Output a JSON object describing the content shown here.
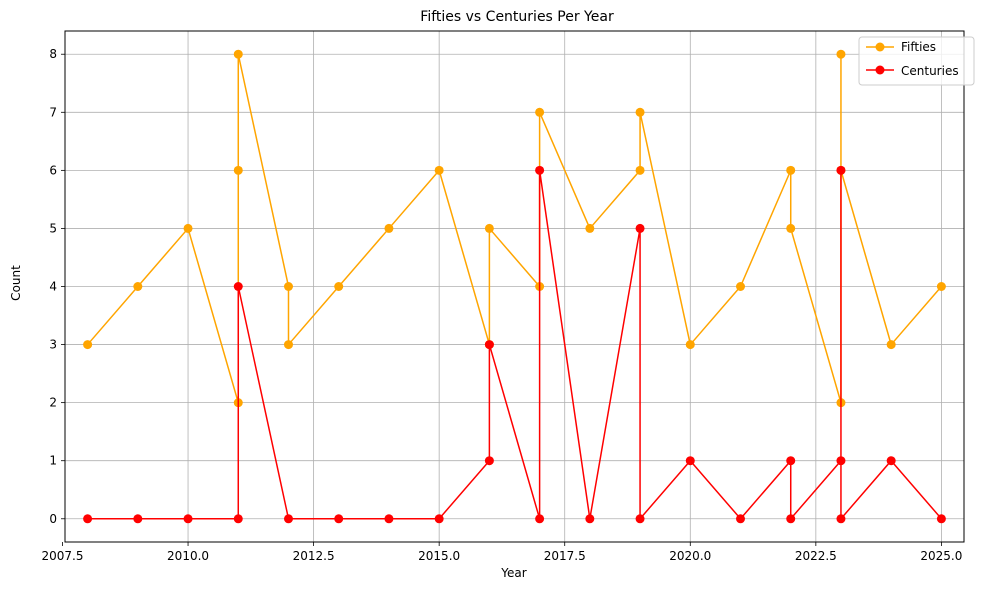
{
  "chart_data": {
    "type": "line",
    "title": "Fifties vs Centuries Per Year",
    "xlabel": "Year",
    "ylabel": "Count",
    "xlim": [
      2007.55,
      2025.45
    ],
    "ylim": [
      -0.4,
      8.4
    ],
    "xticks": [
      2007.5,
      2010.0,
      2012.5,
      2015.0,
      2017.5,
      2020.0,
      2022.5,
      2025.0
    ],
    "xtick_labels": [
      "2007.5",
      "2010.0",
      "2012.5",
      "2015.0",
      "2017.5",
      "2020.0",
      "2022.5",
      "2025.0"
    ],
    "yticks": [
      0,
      1,
      2,
      3,
      4,
      5,
      6,
      7,
      8
    ],
    "ytick_labels": [
      "0",
      "1",
      "2",
      "3",
      "4",
      "5",
      "6",
      "7",
      "8"
    ],
    "grid": true,
    "legend_position": "top-right",
    "series": [
      {
        "name": "Fifties",
        "color": "#ffa500",
        "x": [
          2008,
          2009,
          2010,
          2011,
          2011,
          2011,
          2012,
          2012,
          2013,
          2014,
          2015,
          2016,
          2016,
          2017,
          2017,
          2018,
          2019,
          2019,
          2020,
          2021,
          2022,
          2022,
          2023,
          2023,
          2023,
          2024,
          2025
        ],
        "y": [
          3,
          4,
          5,
          2,
          6,
          8,
          4,
          3,
          4,
          5,
          6,
          3,
          5,
          4,
          7,
          5,
          6,
          7,
          3,
          4,
          6,
          5,
          2,
          8,
          6,
          3,
          4
        ]
      },
      {
        "name": "Centuries",
        "color": "#ff0000",
        "x": [
          2008,
          2009,
          2010,
          2011,
          2011,
          2012,
          2013,
          2014,
          2015,
          2016,
          2016,
          2017,
          2017,
          2018,
          2019,
          2019,
          2020,
          2021,
          2022,
          2022,
          2023,
          2023,
          2023,
          2024,
          2025
        ],
        "y": [
          0,
          0,
          0,
          0,
          4,
          0,
          0,
          0,
          0,
          1,
          3,
          0,
          6,
          0,
          5,
          0,
          1,
          0,
          1,
          0,
          1,
          6,
          0,
          1,
          0
        ]
      }
    ]
  }
}
